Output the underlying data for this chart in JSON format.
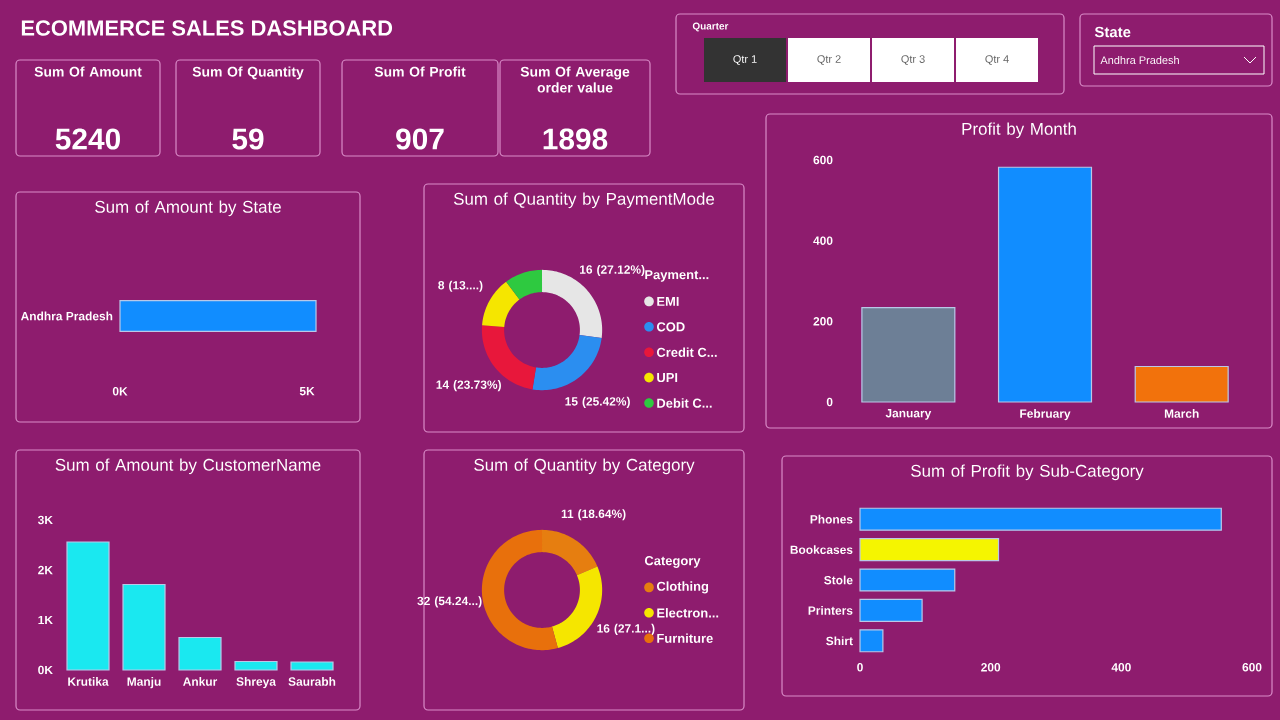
{
  "chart_data": [
    {
      "type": "other",
      "title": "ECOMMERCE SALES DASHBOARD",
      "annotations": [
        "Sum Of Amount",
        "5240",
        "Sum Of Quantity",
        "59",
        "Sum Of Profit",
        "907",
        "Sum Of Average order value",
        "1898",
        "Quarter",
        "Qtr 1",
        "Qtr 2",
        "Qtr 3",
        "Qtr 4",
        "State",
        "Andhra Pradesh"
      ]
    },
    {
      "type": "bar",
      "orientation": "horizontal",
      "title": "Sum of Amount by State",
      "categories": [
        "Andhra Pradesh"
      ],
      "values": [
        5240
      ],
      "color": "#118dff",
      "xlim": [
        0,
        5240
      ],
      "xticks": [
        {
          "value": 0,
          "label": "0K"
        },
        {
          "value": 5000,
          "label": "5K"
        }
      ]
    },
    {
      "type": "donut",
      "title": "Sum of Quantity by PaymentMode",
      "legend_title": "Payment...",
      "legend": "right",
      "categories": [
        "EMI",
        "COD",
        "Credit C...",
        "UPI",
        "Debit C..."
      ],
      "values": [
        16,
        15,
        14,
        8,
        6
      ],
      "colors": [
        "#e6e6e6",
        "#2b8ef0",
        "#e8173b",
        "#f5e600",
        "#2ec940"
      ],
      "value_labels": [
        "16 (27.12%)",
        "15 (25.42%)",
        "14 (23.73%)",
        "8 (13....)",
        null
      ]
    },
    {
      "type": "bar",
      "title": "Profit by Month",
      "categories": [
        "January",
        "February",
        "March"
      ],
      "values": [
        234,
        582,
        88
      ],
      "colors": [
        "#6d7f96",
        "#118dff",
        "#f2720c"
      ],
      "ylim": [
        0,
        600
      ],
      "yticks": [
        0,
        200,
        400,
        600
      ]
    },
    {
      "type": "bar",
      "title": "Sum of Amount by CustomerName",
      "categories": [
        "Krutika",
        "Manju",
        "Ankur",
        "Shreya",
        "Saurabh"
      ],
      "values": [
        2560,
        1710,
        650,
        170,
        160
      ],
      "color": "#1ae8f0",
      "ylim": [
        0,
        3000
      ],
      "yticks": [
        {
          "value": 0,
          "label": "0K"
        },
        {
          "value": 1000,
          "label": "1K"
        },
        {
          "value": 2000,
          "label": "2K"
        },
        {
          "value": 3000,
          "label": "3K"
        }
      ]
    },
    {
      "type": "donut",
      "title": "Sum of Quantity by Category",
      "legend_title": "Category",
      "legend": "right",
      "categories": [
        "Clothing",
        "Electron...",
        "Furniture"
      ],
      "values": [
        11,
        16,
        32
      ],
      "colors": [
        "#e67e10",
        "#f5e600",
        "#e8700c"
      ],
      "value_labels": [
        "11 (18.64%)",
        "16 (27.1...)",
        "32 (54.24...)"
      ]
    },
    {
      "type": "bar",
      "orientation": "horizontal",
      "title": "Sum of Profit by Sub-Category",
      "categories": [
        "Phones",
        "Bookcases",
        "Stole",
        "Printers",
        "Shirt"
      ],
      "values": [
        553,
        212,
        145,
        95,
        35
      ],
      "colors": [
        "#118dff",
        "#f5f500",
        "#118dff",
        "#118dff",
        "#118dff"
      ],
      "xlim": [
        0,
        600
      ],
      "xticks": [
        0,
        200,
        400,
        600
      ]
    }
  ]
}
